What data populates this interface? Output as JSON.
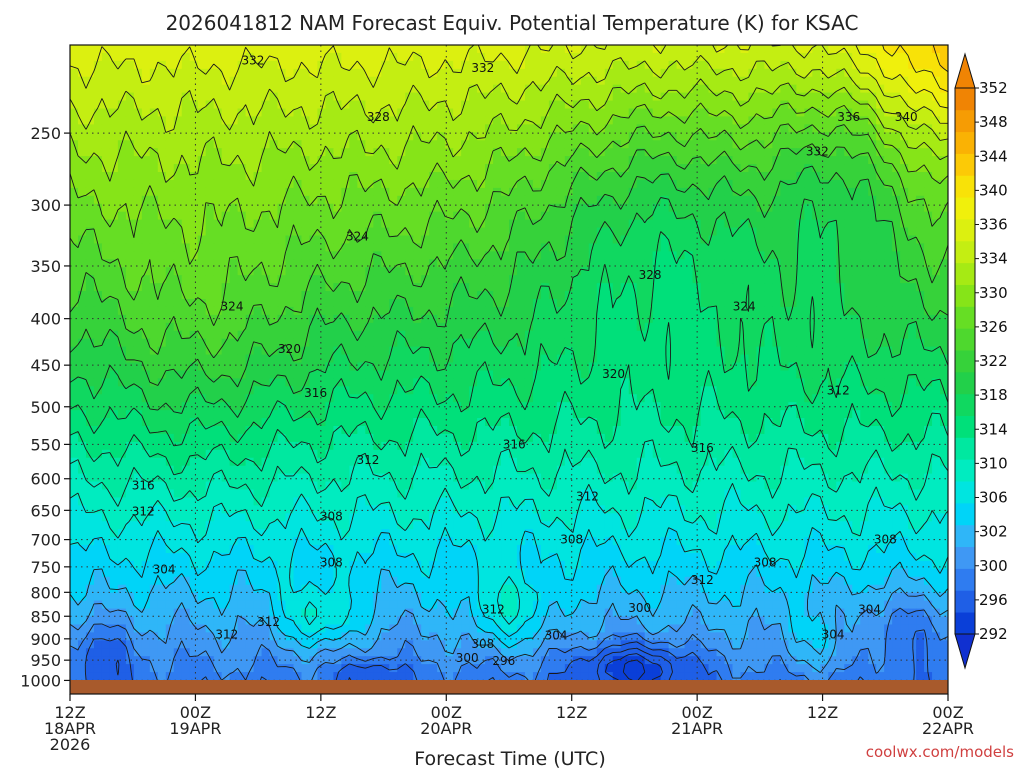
{
  "chart_data": {
    "type": "heatmap",
    "title": "2026041812 NAM Forecast Equiv. Potential Temperature (K) for KSAC",
    "xlabel": "Forecast Time (UTC)",
    "ylabel": "",
    "x_range_hours": [
      0,
      84
    ],
    "x_ticks": [
      {
        "hour": 0,
        "labels": [
          "12Z",
          "18APR",
          "2026"
        ]
      },
      {
        "hour": 12,
        "labels": [
          "00Z",
          "19APR"
        ]
      },
      {
        "hour": 24,
        "labels": [
          "12Z"
        ]
      },
      {
        "hour": 36,
        "labels": [
          "00Z",
          "20APR"
        ]
      },
      {
        "hour": 48,
        "labels": [
          "12Z"
        ]
      },
      {
        "hour": 60,
        "labels": [
          "00Z",
          "21APR"
        ]
      },
      {
        "hour": 72,
        "labels": [
          "12Z"
        ]
      },
      {
        "hour": 84,
        "labels": [
          "00Z",
          "22APR"
        ]
      }
    ],
    "y_scale": "log",
    "y_range_hpa": [
      1035,
      200
    ],
    "y_ticks": [
      250,
      300,
      350,
      400,
      450,
      500,
      550,
      600,
      650,
      700,
      750,
      800,
      850,
      900,
      950,
      1000
    ],
    "colorbar": {
      "levels": [
        292,
        296,
        300,
        302,
        304,
        306,
        308,
        310,
        312,
        314,
        316,
        318,
        320,
        322,
        324,
        326,
        328,
        330,
        332,
        334,
        336,
        338,
        340,
        344,
        348,
        352
      ],
      "labels": [
        292,
        296,
        300,
        302,
        306,
        310,
        314,
        318,
        322,
        326,
        330,
        334,
        336,
        340,
        344,
        348,
        352
      ],
      "colors": [
        "#0a3fd8",
        "#1f5fe6",
        "#2f7cf0",
        "#3f98f4",
        "#2fb6f8",
        "#00d4f8",
        "#00e5e0",
        "#00ecc0",
        "#00e8a0",
        "#00e07a",
        "#10d860",
        "#22d04a",
        "#36d23a",
        "#4ed82e",
        "#66de24",
        "#86e418",
        "#a6ea14",
        "#c4ee12",
        "#dcf010",
        "#f0f00c",
        "#f8e208",
        "#fcca06",
        "#fab204",
        "#f69c04",
        "#f08404"
      ]
    },
    "contour_labels": [
      {
        "text": "332",
        "hour": 17.5,
        "hpa": 208
      },
      {
        "text": "332",
        "hour": 39.5,
        "hpa": 212
      },
      {
        "text": "328",
        "hour": 29.5,
        "hpa": 240
      },
      {
        "text": "336",
        "hour": 74.5,
        "hpa": 240
      },
      {
        "text": "340",
        "hour": 80.0,
        "hpa": 240
      },
      {
        "text": "332",
        "hour": 71.5,
        "hpa": 262
      },
      {
        "text": "324",
        "hour": 27.5,
        "hpa": 325
      },
      {
        "text": "328",
        "hour": 55.5,
        "hpa": 358
      },
      {
        "text": "324",
        "hour": 15.5,
        "hpa": 388
      },
      {
        "text": "324",
        "hour": 64.5,
        "hpa": 388
      },
      {
        "text": "320",
        "hour": 21.0,
        "hpa": 432
      },
      {
        "text": "320",
        "hour": 52.0,
        "hpa": 460
      },
      {
        "text": "316",
        "hour": 23.5,
        "hpa": 483
      },
      {
        "text": "312",
        "hour": 73.5,
        "hpa": 480
      },
      {
        "text": "316",
        "hour": 42.5,
        "hpa": 550
      },
      {
        "text": "316",
        "hour": 60.5,
        "hpa": 555
      },
      {
        "text": "312",
        "hour": 28.5,
        "hpa": 572
      },
      {
        "text": "316",
        "hour": 7.0,
        "hpa": 610
      },
      {
        "text": "312",
        "hour": 49.5,
        "hpa": 628
      },
      {
        "text": "312",
        "hour": 7.0,
        "hpa": 652
      },
      {
        "text": "308",
        "hour": 25.0,
        "hpa": 660
      },
      {
        "text": "308",
        "hour": 48.0,
        "hpa": 700
      },
      {
        "text": "308",
        "hour": 78.0,
        "hpa": 700
      },
      {
        "text": "304",
        "hour": 9.0,
        "hpa": 755
      },
      {
        "text": "308",
        "hour": 25.0,
        "hpa": 742
      },
      {
        "text": "308",
        "hour": 66.5,
        "hpa": 742
      },
      {
        "text": "312",
        "hour": 60.5,
        "hpa": 775
      },
      {
        "text": "300",
        "hour": 54.5,
        "hpa": 832
      },
      {
        "text": "312",
        "hour": 40.5,
        "hpa": 836
      },
      {
        "text": "304",
        "hour": 76.5,
        "hpa": 836
      },
      {
        "text": "312",
        "hour": 19.0,
        "hpa": 862
      },
      {
        "text": "312",
        "hour": 15.0,
        "hpa": 890
      },
      {
        "text": "304",
        "hour": 46.5,
        "hpa": 893
      },
      {
        "text": "304",
        "hour": 73.0,
        "hpa": 890
      },
      {
        "text": "308",
        "hour": 39.5,
        "hpa": 912
      },
      {
        "text": "300",
        "hour": 38.0,
        "hpa": 945
      },
      {
        "text": "296",
        "hour": 41.5,
        "hpa": 952
      }
    ]
  },
  "credit": "coolwx.com/models"
}
